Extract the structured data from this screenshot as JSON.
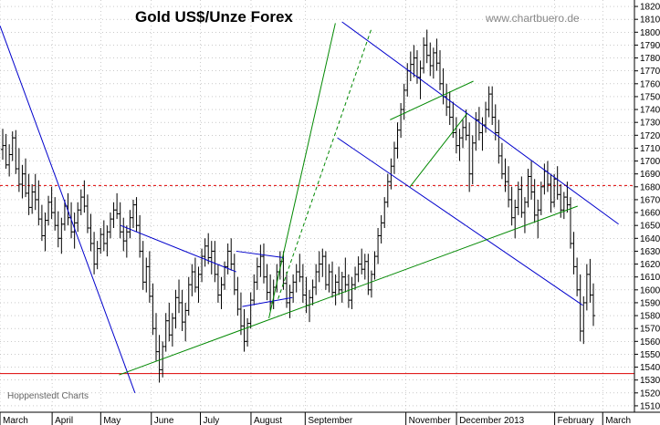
{
  "header": {
    "title": "Gold US$/Unze Forex",
    "site": "www.chartbuero.de",
    "source": "Hoppenstedt Charts"
  },
  "colors": {
    "bars": "#000000",
    "downtrend": "#0000cc",
    "uptrend": "#008800",
    "resistance_dotted": "#dd0000",
    "support_solid": "#dd0000",
    "grid": "#aaaaaa"
  },
  "chart_data": {
    "type": "ohlc",
    "title": "Gold US$/Unze Forex",
    "xlabel": "",
    "ylabel": "",
    "ylim": [
      1505,
      1825
    ],
    "y_ticks": [
      1510,
      1520,
      1530,
      1540,
      1550,
      1560,
      1570,
      1580,
      1590,
      1600,
      1610,
      1620,
      1630,
      1640,
      1650,
      1660,
      1670,
      1680,
      1690,
      1700,
      1710,
      1720,
      1730,
      1740,
      1750,
      1760,
      1770,
      1780,
      1790,
      1800,
      1810,
      1820
    ],
    "months": [
      {
        "label": "March",
        "pos": 0.0
      },
      {
        "label": "April",
        "pos": 0.102
      },
      {
        "label": "May",
        "pos": 0.197
      },
      {
        "label": "June",
        "pos": 0.296
      },
      {
        "label": "July",
        "pos": 0.392
      },
      {
        "label": "August",
        "pos": 0.491
      },
      {
        "label": "September",
        "pos": 0.597
      },
      {
        "label": "November",
        "pos": 0.794
      },
      {
        "label": "December 2013",
        "pos": 0.893
      },
      {
        "label": "February",
        "pos": 1.085
      },
      {
        "label": "March",
        "pos": 1.179
      }
    ],
    "grid": "dotted horizontal and vertical",
    "horizontal_levels": [
      {
        "value": 1681,
        "style": "dotted",
        "color": "red"
      },
      {
        "value": 1535,
        "style": "solid",
        "color": "red"
      }
    ],
    "trendlines": [
      {
        "color": "blue",
        "style": "solid",
        "from": [
          0.0,
          1805
        ],
        "to": [
          0.264,
          1520
        ]
      },
      {
        "color": "blue",
        "style": "solid",
        "from": [
          0.236,
          1650
        ],
        "to": [
          0.462,
          1614
        ]
      },
      {
        "color": "blue",
        "style": "solid",
        "from": [
          0.462,
          1630
        ],
        "to": [
          0.555,
          1625
        ]
      },
      {
        "color": "blue",
        "style": "solid",
        "from": [
          0.474,
          1587
        ],
        "to": [
          0.572,
          1594
        ]
      },
      {
        "color": "blue",
        "style": "solid",
        "from": [
          0.669,
          1808
        ],
        "to": [
          1.21,
          1651
        ]
      },
      {
        "color": "blue",
        "style": "solid",
        "from": [
          0.66,
          1718
        ],
        "to": [
          1.14,
          1588
        ]
      },
      {
        "color": "green",
        "style": "solid",
        "from": [
          0.233,
          1534
        ],
        "to": [
          1.13,
          1665
        ]
      },
      {
        "color": "green",
        "style": "solid",
        "from": [
          0.526,
          1578
        ],
        "to": [
          0.656,
          1807
        ]
      },
      {
        "color": "green",
        "style": "dashed",
        "from": [
          0.544,
          1593
        ],
        "to": [
          0.726,
          1802
        ]
      },
      {
        "color": "green",
        "style": "solid",
        "from": [
          0.802,
          1680
        ],
        "to": [
          0.914,
          1737
        ]
      },
      {
        "color": "green",
        "style": "solid",
        "from": [
          0.763,
          1732
        ],
        "to": [
          0.926,
          1762
        ]
      }
    ],
    "ohlc": [
      [
        1709,
        1725,
        1701,
        1712
      ],
      [
        1712,
        1721,
        1694,
        1697
      ],
      [
        1697,
        1713,
        1688,
        1705
      ],
      [
        1705,
        1723,
        1700,
        1718
      ],
      [
        1718,
        1724,
        1690,
        1694
      ],
      [
        1694,
        1710,
        1676,
        1682
      ],
      [
        1682,
        1697,
        1671,
        1690
      ],
      [
        1690,
        1702,
        1672,
        1675
      ],
      [
        1675,
        1690,
        1658,
        1664
      ],
      [
        1664,
        1682,
        1659,
        1676
      ],
      [
        1676,
        1690,
        1662,
        1670
      ],
      [
        1670,
        1685,
        1650,
        1655
      ],
      [
        1655,
        1666,
        1638,
        1642
      ],
      [
        1642,
        1660,
        1630,
        1654
      ],
      [
        1654,
        1673,
        1650,
        1668
      ],
      [
        1668,
        1680,
        1655,
        1660
      ],
      [
        1660,
        1672,
        1646,
        1650
      ],
      [
        1650,
        1661,
        1633,
        1640
      ],
      [
        1640,
        1656,
        1628,
        1651
      ],
      [
        1651,
        1670,
        1646,
        1665
      ],
      [
        1665,
        1675,
        1650,
        1656
      ],
      [
        1656,
        1668,
        1640,
        1645
      ],
      [
        1645,
        1660,
        1632,
        1652
      ],
      [
        1652,
        1668,
        1645,
        1662
      ],
      [
        1662,
        1678,
        1658,
        1672
      ],
      [
        1672,
        1685,
        1660,
        1665
      ],
      [
        1665,
        1674,
        1644,
        1648
      ],
      [
        1648,
        1659,
        1630,
        1636
      ],
      [
        1636,
        1645,
        1612,
        1620
      ],
      [
        1620,
        1638,
        1616,
        1632
      ],
      [
        1632,
        1648,
        1628,
        1643
      ],
      [
        1643,
        1654,
        1630,
        1636
      ],
      [
        1636,
        1650,
        1626,
        1645
      ],
      [
        1645,
        1660,
        1640,
        1655
      ],
      [
        1655,
        1668,
        1648,
        1662
      ],
      [
        1662,
        1675,
        1655,
        1659
      ],
      [
        1659,
        1668,
        1640,
        1645
      ],
      [
        1645,
        1656,
        1630,
        1638
      ],
      [
        1638,
        1650,
        1625,
        1645
      ],
      [
        1645,
        1662,
        1640,
        1656
      ],
      [
        1656,
        1670,
        1648,
        1666
      ],
      [
        1666,
        1672,
        1645,
        1650
      ],
      [
        1650,
        1658,
        1625,
        1630
      ],
      [
        1630,
        1638,
        1600,
        1606
      ],
      [
        1606,
        1625,
        1598,
        1618
      ],
      [
        1618,
        1630,
        1590,
        1595
      ],
      [
        1595,
        1605,
        1565,
        1570
      ],
      [
        1570,
        1582,
        1545,
        1552
      ],
      [
        1552,
        1565,
        1528,
        1538
      ],
      [
        1538,
        1560,
        1532,
        1556
      ],
      [
        1556,
        1582,
        1552,
        1576
      ],
      [
        1576,
        1590,
        1560,
        1565
      ],
      [
        1565,
        1582,
        1556,
        1578
      ],
      [
        1578,
        1600,
        1570,
        1594
      ],
      [
        1594,
        1608,
        1582,
        1590
      ],
      [
        1590,
        1600,
        1568,
        1575
      ],
      [
        1575,
        1590,
        1560,
        1584
      ],
      [
        1584,
        1610,
        1580,
        1604
      ],
      [
        1604,
        1620,
        1595,
        1614
      ],
      [
        1614,
        1625,
        1598,
        1602
      ],
      [
        1602,
        1618,
        1590,
        1612
      ],
      [
        1612,
        1632,
        1606,
        1626
      ],
      [
        1626,
        1640,
        1618,
        1634
      ],
      [
        1634,
        1644,
        1620,
        1625
      ],
      [
        1625,
        1638,
        1612,
        1630
      ],
      [
        1630,
        1638,
        1606,
        1612
      ],
      [
        1612,
        1620,
        1590,
        1596
      ],
      [
        1596,
        1610,
        1585,
        1604
      ],
      [
        1604,
        1622,
        1600,
        1618
      ],
      [
        1618,
        1636,
        1612,
        1630
      ],
      [
        1630,
        1640,
        1615,
        1620
      ],
      [
        1620,
        1628,
        1596,
        1600
      ],
      [
        1600,
        1610,
        1580,
        1585
      ],
      [
        1585,
        1598,
        1565,
        1572
      ],
      [
        1572,
        1585,
        1552,
        1560
      ],
      [
        1560,
        1578,
        1556,
        1574
      ],
      [
        1574,
        1598,
        1570,
        1592
      ],
      [
        1592,
        1612,
        1588,
        1606
      ],
      [
        1606,
        1625,
        1600,
        1618
      ],
      [
        1618,
        1635,
        1610,
        1626
      ],
      [
        1626,
        1636,
        1605,
        1610
      ],
      [
        1610,
        1620,
        1592,
        1598
      ],
      [
        1598,
        1612,
        1584,
        1590
      ],
      [
        1590,
        1608,
        1585,
        1602
      ],
      [
        1602,
        1620,
        1598,
        1614
      ],
      [
        1614,
        1630,
        1608,
        1622
      ],
      [
        1622,
        1630,
        1600,
        1605
      ],
      [
        1605,
        1614,
        1586,
        1590
      ],
      [
        1590,
        1604,
        1578,
        1598
      ],
      [
        1598,
        1612,
        1590,
        1606
      ],
      [
        1606,
        1620,
        1598,
        1614
      ],
      [
        1614,
        1628,
        1606,
        1610
      ],
      [
        1610,
        1620,
        1590,
        1596
      ],
      [
        1596,
        1610,
        1582,
        1588
      ],
      [
        1588,
        1600,
        1575,
        1594
      ],
      [
        1594,
        1608,
        1588,
        1602
      ],
      [
        1602,
        1620,
        1596,
        1614
      ],
      [
        1614,
        1630,
        1606,
        1620
      ],
      [
        1620,
        1632,
        1610,
        1626
      ],
      [
        1626,
        1630,
        1600,
        1604
      ],
      [
        1604,
        1620,
        1598,
        1614
      ],
      [
        1614,
        1622,
        1594,
        1598
      ],
      [
        1598,
        1612,
        1588,
        1606
      ],
      [
        1606,
        1618,
        1596,
        1600
      ],
      [
        1600,
        1614,
        1590,
        1610
      ],
      [
        1610,
        1625,
        1598,
        1604
      ],
      [
        1604,
        1612,
        1586,
        1592
      ],
      [
        1592,
        1610,
        1585,
        1604
      ],
      [
        1604,
        1618,
        1600,
        1612
      ],
      [
        1612,
        1626,
        1606,
        1620
      ],
      [
        1620,
        1632,
        1612,
        1616
      ],
      [
        1616,
        1628,
        1608,
        1622
      ],
      [
        1622,
        1628,
        1596,
        1600
      ],
      [
        1600,
        1615,
        1594,
        1612
      ],
      [
        1612,
        1630,
        1608,
        1626
      ],
      [
        1626,
        1648,
        1620,
        1642
      ],
      [
        1642,
        1658,
        1636,
        1652
      ],
      [
        1652,
        1672,
        1648,
        1668
      ],
      [
        1668,
        1690,
        1664,
        1684
      ],
      [
        1684,
        1702,
        1678,
        1696
      ],
      [
        1696,
        1715,
        1690,
        1710
      ],
      [
        1710,
        1730,
        1702,
        1724
      ],
      [
        1724,
        1745,
        1718,
        1740
      ],
      [
        1740,
        1760,
        1732,
        1755
      ],
      [
        1755,
        1776,
        1750,
        1770
      ],
      [
        1770,
        1785,
        1762,
        1775
      ],
      [
        1775,
        1790,
        1765,
        1780
      ],
      [
        1780,
        1786,
        1760,
        1765
      ],
      [
        1765,
        1778,
        1748,
        1772
      ],
      [
        1772,
        1796,
        1768,
        1790
      ],
      [
        1790,
        1802,
        1776,
        1782
      ],
      [
        1782,
        1792,
        1766,
        1774
      ],
      [
        1774,
        1788,
        1764,
        1784
      ],
      [
        1784,
        1795,
        1770,
        1776
      ],
      [
        1776,
        1786,
        1755,
        1760
      ],
      [
        1760,
        1772,
        1744,
        1750
      ],
      [
        1750,
        1760,
        1735,
        1742
      ],
      [
        1742,
        1754,
        1728,
        1734
      ],
      [
        1734,
        1746,
        1718,
        1722
      ],
      [
        1722,
        1734,
        1706,
        1712
      ],
      [
        1712,
        1725,
        1700,
        1718
      ],
      [
        1718,
        1732,
        1710,
        1726
      ],
      [
        1726,
        1740,
        1716,
        1720
      ],
      [
        1720,
        1730,
        1676,
        1690
      ],
      [
        1690,
        1720,
        1682,
        1714
      ],
      [
        1714,
        1738,
        1708,
        1732
      ],
      [
        1732,
        1742,
        1716,
        1722
      ],
      [
        1722,
        1734,
        1708,
        1728
      ],
      [
        1728,
        1746,
        1722,
        1740
      ],
      [
        1740,
        1758,
        1734,
        1752
      ],
      [
        1752,
        1758,
        1728,
        1734
      ],
      [
        1734,
        1744,
        1716,
        1722
      ],
      [
        1722,
        1732,
        1698,
        1704
      ],
      [
        1704,
        1714,
        1686,
        1690
      ],
      [
        1690,
        1702,
        1676,
        1684
      ],
      [
        1684,
        1696,
        1664,
        1670
      ],
      [
        1670,
        1680,
        1650,
        1656
      ],
      [
        1656,
        1670,
        1640,
        1664
      ],
      [
        1664,
        1684,
        1658,
        1678
      ],
      [
        1678,
        1688,
        1656,
        1660
      ],
      [
        1660,
        1672,
        1644,
        1668
      ],
      [
        1668,
        1694,
        1664,
        1688
      ],
      [
        1688,
        1700,
        1670,
        1676
      ],
      [
        1676,
        1686,
        1652,
        1658
      ],
      [
        1658,
        1670,
        1640,
        1662
      ],
      [
        1662,
        1684,
        1658,
        1680
      ],
      [
        1680,
        1698,
        1674,
        1692
      ],
      [
        1692,
        1700,
        1676,
        1682
      ],
      [
        1682,
        1690,
        1660,
        1668
      ],
      [
        1668,
        1690,
        1664,
        1686
      ],
      [
        1686,
        1696,
        1670,
        1674
      ],
      [
        1674,
        1682,
        1656,
        1662
      ],
      [
        1662,
        1676,
        1655,
        1672
      ],
      [
        1672,
        1684,
        1660,
        1666
      ],
      [
        1666,
        1672,
        1632,
        1636
      ],
      [
        1636,
        1645,
        1612,
        1618
      ],
      [
        1618,
        1625,
        1595,
        1600
      ],
      [
        1600,
        1612,
        1560,
        1568
      ],
      [
        1568,
        1595,
        1558,
        1590
      ],
      [
        1590,
        1620,
        1584,
        1612
      ],
      [
        1612,
        1624,
        1590,
        1596
      ],
      [
        1596,
        1605,
        1572,
        1580
      ]
    ]
  }
}
